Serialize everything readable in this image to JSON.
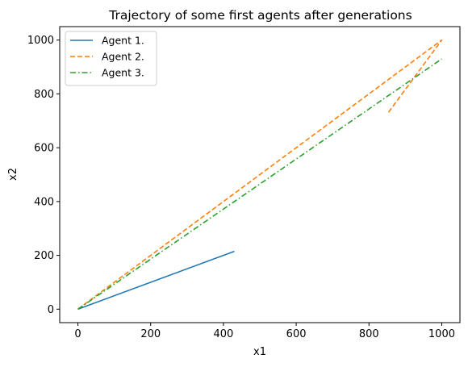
{
  "chart_data": {
    "type": "line",
    "title": "Trajectory of some first agents after generations",
    "xlabel": "x1",
    "ylabel": "x2",
    "xlim": [
      -50,
      1050
    ],
    "ylim": [
      -50,
      1050
    ],
    "xticks": [
      0,
      200,
      400,
      600,
      800,
      1000
    ],
    "yticks": [
      0,
      200,
      400,
      600,
      800,
      1000
    ],
    "grid": false,
    "legend_position": "top-left",
    "series": [
      {
        "name": "Agent 1.",
        "color": "#1f77b4",
        "dash": "solid",
        "x": [
          0,
          430
        ],
        "y": [
          0,
          215
        ]
      },
      {
        "name": "Agent 2.",
        "color": "#ff7f0e",
        "dash": "dashed",
        "x": [
          0,
          1000,
          850
        ],
        "y": [
          0,
          1000,
          725
        ]
      },
      {
        "name": "Agent 3.",
        "color": "#2ca02c",
        "dash": "dashdot",
        "x": [
          0,
          1000
        ],
        "y": [
          0,
          930
        ]
      }
    ]
  }
}
